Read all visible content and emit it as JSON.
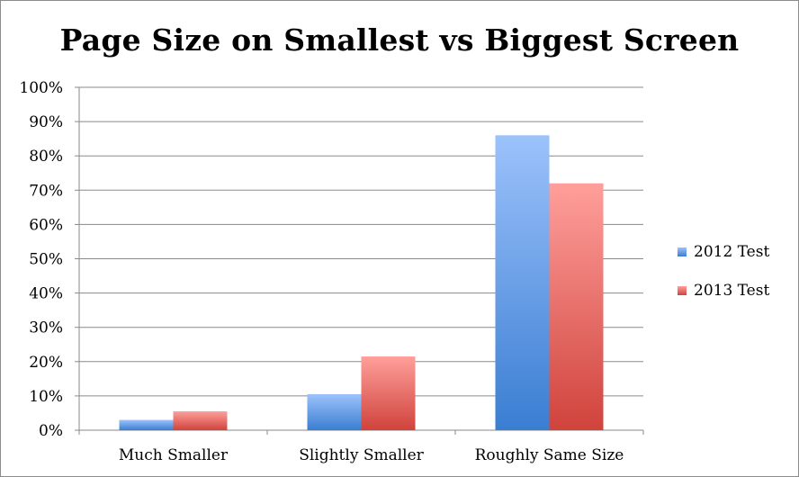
{
  "chart_data": {
    "type": "bar",
    "title": "Page Size on Smallest vs Biggest Screen",
    "categories": [
      "Much Smaller",
      "Slightly Smaller",
      "Roughly Same Size"
    ],
    "series": [
      {
        "name": "2012 Test",
        "values": [
          3,
          10.5,
          86
        ],
        "color_top": "#9cc2fb",
        "color_bottom": "#3a7ed2"
      },
      {
        "name": "2013 Test",
        "values": [
          5.5,
          21.5,
          72
        ],
        "color_top": "#ff9f9b",
        "color_bottom": "#d0433c"
      }
    ],
    "ylim": [
      0,
      100
    ],
    "yticks": [
      "0%",
      "10%",
      "20%",
      "30%",
      "40%",
      "50%",
      "60%",
      "70%",
      "80%",
      "90%",
      "100%"
    ],
    "grid": true,
    "legend_position": "right"
  }
}
